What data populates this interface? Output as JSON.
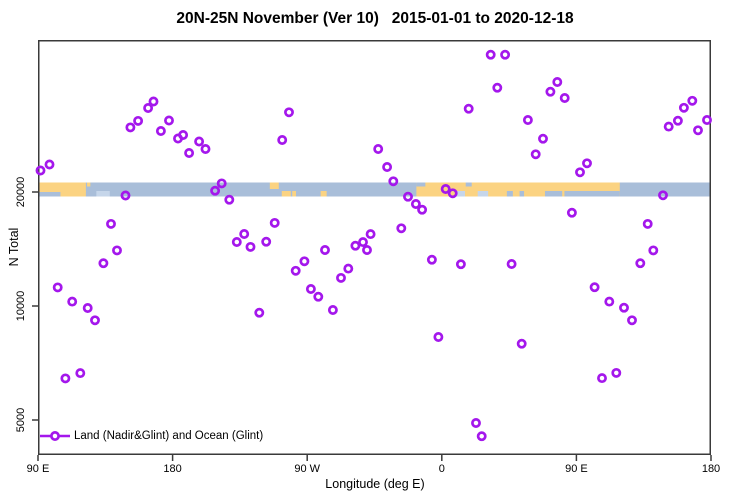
{
  "title": "20N-25N November (Ver 10)   2015-01-01 to 2020-12-18",
  "legend": {
    "label": "Land (Nadir&Glint) and Ocean (Glint)",
    "position": "bottom-left"
  },
  "colors": {
    "point_stroke": "#a417ec",
    "ocean": "#a9bed9",
    "land": "#fbd382",
    "shallow_water": "#c6d6ea",
    "frame": "#3a3a3a",
    "text": "#000000"
  },
  "chart_data": {
    "type": "scatter",
    "title": "20N-25N November (Ver 10)   2015-01-01 to 2020-12-18",
    "xlabel": "Longitude (deg E)",
    "ylabel": "N Total",
    "marker": "open-circle",
    "grid": false,
    "x_axis": {
      "note": "longitude axis starts at 90 E and wraps eastward around the globe to 180; x stored as degrees east of 90 E (0-450)",
      "range": [
        0,
        450
      ],
      "ticks": [
        {
          "offset": 0,
          "label": "90 E"
        },
        {
          "offset": 90,
          "label": "180"
        },
        {
          "offset": 180,
          "label": "90 W"
        },
        {
          "offset": 270,
          "label": "0"
        },
        {
          "offset": 360,
          "label": "90 E"
        },
        {
          "offset": 450,
          "label": "180"
        }
      ]
    },
    "y_axis": {
      "scale": "log10",
      "range": [
        4000,
        50500
      ],
      "ticks": [
        {
          "value": 20000,
          "label": "20000"
        },
        {
          "value": 10000,
          "label": "10000"
        },
        {
          "value": 5000,
          "label": "5000"
        }
      ]
    },
    "map_strip": {
      "description": "world land/ocean map band for latitude 20N-25N drawn across the plot at N Total = 20000",
      "at_value": 20000,
      "land_segments": [
        {
          "from": 0,
          "to": 32,
          "band": "top23"
        },
        {
          "from": 15,
          "to": 32,
          "band": "bottom"
        },
        {
          "from": 32.8,
          "to": 35,
          "band": "topnotch"
        },
        {
          "from": 155,
          "to": 161,
          "band": "top"
        },
        {
          "from": 163,
          "to": 169,
          "band": "bottom"
        },
        {
          "from": 170,
          "to": 172.5,
          "band": "bottom"
        },
        {
          "from": 189,
          "to": 193,
          "band": "bottom"
        },
        {
          "from": 253,
          "to": 389,
          "band": "full"
        }
      ],
      "water_overlays": [
        {
          "from": 253,
          "to": 259,
          "band": "topnotch",
          "kind": "ocean"
        },
        {
          "from": 286,
          "to": 290,
          "band": "topnotch",
          "kind": "ocean"
        },
        {
          "from": 279,
          "to": 285.5,
          "band": "bottom",
          "kind": "shallow"
        },
        {
          "from": 294,
          "to": 301,
          "band": "bottom",
          "kind": "shallow"
        },
        {
          "from": 313.5,
          "to": 317.5,
          "band": "bottom",
          "kind": "ocean"
        },
        {
          "from": 322,
          "to": 325,
          "band": "bottom",
          "kind": "ocean"
        },
        {
          "from": 339,
          "to": 350.5,
          "band": "bottom",
          "kind": "ocean"
        },
        {
          "from": 352,
          "to": 389,
          "band": "bottom",
          "kind": "ocean"
        },
        {
          "from": 39,
          "to": 48,
          "band": "bottom",
          "kind": "shallow"
        }
      ]
    },
    "legend": {
      "label": "Land (Nadir&Glint) and Ocean (Glint)",
      "position": "bottom-left"
    },
    "points": [
      [
        1.7,
        22800
      ],
      [
        7.7,
        23640
      ],
      [
        13.2,
        11200
      ],
      [
        18.3,
        6440
      ],
      [
        22.9,
        10270
      ],
      [
        28.3,
        6650
      ],
      [
        33.2,
        9880
      ],
      [
        38.1,
        9170
      ],
      [
        43.7,
        12970
      ],
      [
        48.8,
        16470
      ],
      [
        52.8,
        14020
      ],
      [
        58.5,
        19580
      ],
      [
        61.8,
        29620
      ],
      [
        66.9,
        30810
      ],
      [
        73.6,
        33330
      ],
      [
        77.2,
        34670
      ],
      [
        82.2,
        28980
      ],
      [
        87.6,
        30900
      ],
      [
        93.6,
        27690
      ],
      [
        97,
        28290
      ],
      [
        101,
        25350
      ],
      [
        107.7,
        27190
      ],
      [
        112,
        25980
      ],
      [
        118.4,
        20160
      ],
      [
        122.8,
        21080
      ],
      [
        127.9,
        19090
      ],
      [
        132.9,
        14760
      ],
      [
        137.9,
        15490
      ],
      [
        142.1,
        14320
      ],
      [
        148,
        9600
      ],
      [
        152.6,
        14780
      ],
      [
        158.3,
        16570
      ],
      [
        163.3,
        27440
      ],
      [
        167.8,
        32470
      ],
      [
        172.3,
        12390
      ],
      [
        178.1,
        13120
      ],
      [
        182.5,
        11090
      ],
      [
        187.4,
        10580
      ],
      [
        191.9,
        14060
      ],
      [
        197.2,
        9760
      ],
      [
        202.6,
        11860
      ],
      [
        207.5,
        12550
      ],
      [
        212.2,
        14430
      ],
      [
        217.3,
        14750
      ],
      [
        220,
        14060
      ],
      [
        222.4,
        15480
      ],
      [
        227.5,
        25980
      ],
      [
        233.4,
        23280
      ],
      [
        237.6,
        21340
      ],
      [
        242.9,
        16040
      ],
      [
        247.4,
        19440
      ],
      [
        252.7,
        18590
      ],
      [
        256.8,
        17960
      ],
      [
        263.4,
        13250
      ],
      [
        267.7,
        8280
      ],
      [
        272.6,
        20370
      ],
      [
        277.3,
        19840
      ],
      [
        282.8,
        12890
      ],
      [
        288,
        33190
      ],
      [
        292.9,
        4910
      ],
      [
        296.7,
        4530
      ],
      [
        302.7,
        46080
      ],
      [
        307.1,
        37710
      ],
      [
        312.3,
        46080
      ],
      [
        316.7,
        12910
      ],
      [
        323.4,
        7950
      ],
      [
        327.6,
        30990
      ],
      [
        332.8,
        25150
      ],
      [
        337.7,
        27650
      ],
      [
        342.6,
        36810
      ],
      [
        347.2,
        39040
      ],
      [
        352.2,
        35420
      ],
      [
        357,
        17630
      ],
      [
        362.4,
        22540
      ],
      [
        367.1,
        23810
      ],
      [
        372.2,
        11210
      ],
      [
        377.1,
        6450
      ],
      [
        382,
        10270
      ],
      [
        386.7,
        6660
      ],
      [
        391.8,
        9900
      ],
      [
        397.2,
        9170
      ],
      [
        402.7,
        12970
      ],
      [
        407.7,
        16470
      ],
      [
        411.4,
        14020
      ],
      [
        417.9,
        19600
      ],
      [
        421.7,
        29760
      ],
      [
        427.9,
        30860
      ],
      [
        431.9,
        33380
      ],
      [
        437.5,
        34830
      ],
      [
        441.3,
        29100
      ],
      [
        447.3,
        30990
      ]
    ]
  }
}
